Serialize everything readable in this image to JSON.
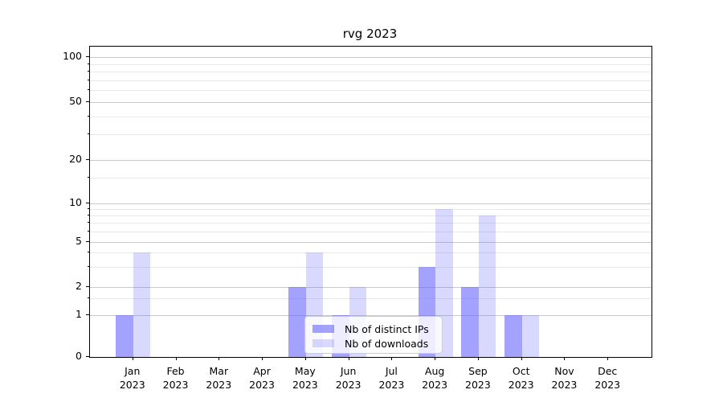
{
  "chart_data": {
    "type": "bar",
    "title": "rvg 2023",
    "x_categories": [
      {
        "month": "Jan",
        "year": "2023"
      },
      {
        "month": "Feb",
        "year": "2023"
      },
      {
        "month": "Mar",
        "year": "2023"
      },
      {
        "month": "Apr",
        "year": "2023"
      },
      {
        "month": "May",
        "year": "2023"
      },
      {
        "month": "Jun",
        "year": "2023"
      },
      {
        "month": "Jul",
        "year": "2023"
      },
      {
        "month": "Aug",
        "year": "2023"
      },
      {
        "month": "Sep",
        "year": "2023"
      },
      {
        "month": "Oct",
        "year": "2023"
      },
      {
        "month": "Nov",
        "year": "2023"
      },
      {
        "month": "Dec",
        "year": "2023"
      }
    ],
    "series": [
      {
        "name": "Nb of distinct IPs",
        "base_color": "#6666ff",
        "alpha": 0.6,
        "values": [
          1,
          0,
          0,
          0,
          2,
          1,
          0,
          3,
          2,
          1,
          0,
          0
        ]
      },
      {
        "name": "Nb of downloads",
        "base_color": "#6666ff",
        "alpha": 0.25,
        "values": [
          4,
          0,
          0,
          0,
          4,
          2,
          0,
          9,
          8,
          1,
          0,
          0
        ]
      }
    ],
    "y_axis": {
      "scale": "asinh-log",
      "range": [
        0,
        100
      ],
      "major_ticks": [
        0,
        1,
        2,
        5,
        10,
        20,
        50,
        100
      ],
      "minor_ticks": [
        1.5,
        3,
        4,
        6,
        7,
        8,
        9,
        15,
        30,
        40,
        60,
        70,
        80,
        90
      ]
    },
    "legend": {
      "position": "lower-center"
    },
    "grid": true
  },
  "colors": {
    "grid_major": "#c9c9c9",
    "grid_minor": "#e8e8e8",
    "spine": "#000000",
    "background": "#ffffff"
  }
}
